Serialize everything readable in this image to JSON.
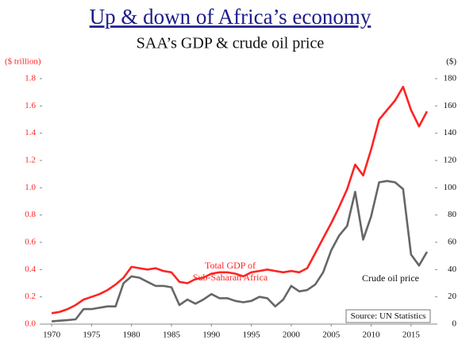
{
  "chart_data": {
    "type": "line",
    "title": "Up & down of Africa’s economy",
    "subtitle": "SAA’s GDP & crude oil price",
    "ylabel": "($ trillion)",
    "y2label": "($)",
    "source": "Source: UN Statistics",
    "x": [
      1970,
      1971,
      1972,
      1973,
      1974,
      1975,
      1976,
      1977,
      1978,
      1979,
      1980,
      1981,
      1982,
      1983,
      1984,
      1985,
      1986,
      1987,
      1988,
      1989,
      1990,
      1991,
      1992,
      1993,
      1994,
      1995,
      1996,
      1997,
      1998,
      1999,
      2000,
      2001,
      2002,
      2003,
      2004,
      2005,
      2006,
      2007,
      2008,
      2009,
      2010,
      2011,
      2012,
      2013,
      2014,
      2015,
      2016,
      2017
    ],
    "xlim": [
      1968.8,
      2018
    ],
    "xticks": [
      1970,
      1975,
      1980,
      1985,
      1990,
      1995,
      2000,
      2005,
      2010,
      2015
    ],
    "ylim": [
      0,
      1.8
    ],
    "yticks": [
      {
        "value": 0,
        "label": "0.0"
      },
      0.2,
      0.4,
      0.6,
      0.8,
      {
        "value": 1,
        "label": "1.0"
      },
      1.2,
      1.4,
      1.6,
      1.8
    ],
    "y2lim": [
      0,
      180
    ],
    "y2ticks": [
      0,
      20,
      40,
      60,
      80,
      100,
      120,
      140,
      160,
      180
    ],
    "series": [
      {
        "name_lines": [
          "Total GDP of",
          "Sub-Saharan Africa"
        ],
        "color": "#ff2323",
        "axis": "y",
        "values": [
          0.08,
          0.09,
          0.11,
          0.14,
          0.18,
          0.2,
          0.22,
          0.25,
          0.29,
          0.34,
          0.42,
          0.41,
          0.4,
          0.41,
          0.39,
          0.38,
          0.31,
          0.3,
          0.33,
          0.34,
          0.37,
          0.38,
          0.38,
          0.37,
          0.35,
          0.38,
          0.39,
          0.4,
          0.39,
          0.38,
          0.39,
          0.38,
          0.41,
          0.52,
          0.63,
          0.74,
          0.86,
          0.99,
          1.17,
          1.09,
          1.28,
          1.5,
          1.57,
          1.64,
          1.74,
          1.57,
          1.45,
          1.56
        ]
      },
      {
        "name_lines": [
          "Crude oil price"
        ],
        "color": "#666666",
        "axis": "y2",
        "values": [
          2,
          2.5,
          3,
          3.5,
          11,
          11,
          12,
          13,
          13,
          30,
          35,
          34,
          31,
          28,
          28,
          27,
          14,
          18,
          15,
          18,
          22,
          19,
          19,
          17,
          16,
          17,
          20,
          19,
          13,
          18,
          28,
          24,
          25,
          29,
          38,
          54,
          65,
          72,
          97,
          62,
          79,
          104,
          105,
          104,
          99,
          51,
          43,
          53
        ]
      }
    ]
  }
}
